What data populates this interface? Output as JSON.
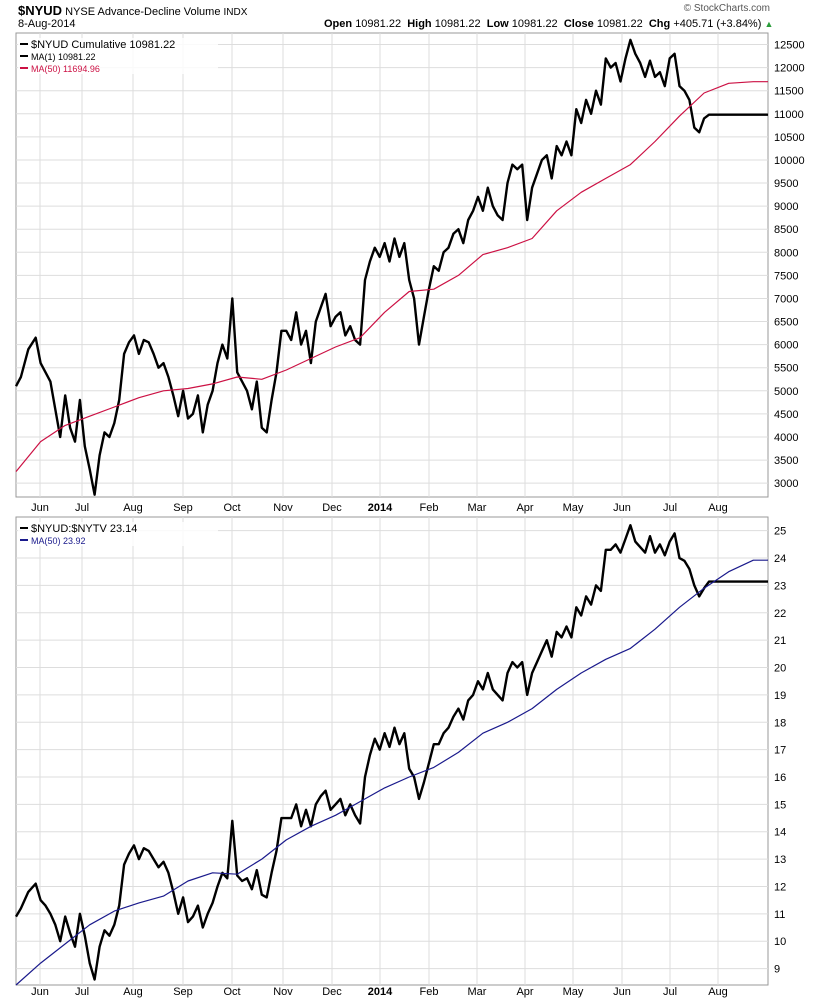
{
  "header": {
    "symbol": "$NYUD",
    "name": "NYSE Advance-Decline Volume",
    "exchange": "INDX",
    "date": "8-Aug-2014",
    "open_label": "Open",
    "open": "10981.22",
    "high_label": "High",
    "high": "10981.22",
    "low_label": "Low",
    "low": "10981.22",
    "close_label": "Close",
    "close": "10981.22",
    "chg_label": "Chg",
    "chg": "+405.71 (+3.84%)",
    "brand": "© StockCharts.com"
  },
  "colors": {
    "price": "#000000",
    "ma_top": "#cc1144",
    "ma_bottom": "#1a1a8c",
    "grid": "#dddddd",
    "frame": "#999999"
  },
  "chart_data": [
    {
      "type": "line",
      "x_ticks": [
        "Jun",
        "Jul",
        "Aug",
        "Sep",
        "Oct",
        "Nov",
        "Dec",
        "2014",
        "Feb",
        "Mar",
        "Apr",
        "May",
        "Jun",
        "Jul",
        "Aug"
      ],
      "ylim": [
        2700,
        12750
      ],
      "y_ticks": [
        3000,
        3500,
        4000,
        4500,
        5000,
        5500,
        6000,
        6500,
        7000,
        7500,
        8000,
        8500,
        9000,
        9500,
        10000,
        10500,
        11000,
        11500,
        12000,
        12500
      ],
      "legend": [
        {
          "label": "$NYUD Cumulative 10981.22",
          "color": "#000000"
        },
        {
          "label": "MA(1) 10981.22",
          "color": "#000000"
        },
        {
          "label": "MA(50) 11694.96",
          "color": "#cc1144"
        }
      ],
      "series": [
        {
          "name": "$NYUD Cumulative",
          "x": [
            0,
            2,
            5,
            8,
            10,
            12,
            14,
            16,
            18,
            20,
            22,
            24,
            26,
            28,
            30,
            32,
            34,
            36,
            38,
            40,
            42,
            44,
            46,
            48,
            50,
            52,
            54,
            56,
            58,
            60,
            62,
            64,
            66,
            68,
            70,
            72,
            74,
            76,
            78,
            80,
            82,
            84,
            86,
            88,
            90,
            92,
            94,
            96,
            98,
            100,
            102,
            104,
            106,
            108,
            110,
            112,
            114,
            116,
            118,
            120,
            122,
            124,
            126,
            128,
            130,
            132,
            134,
            136,
            138,
            140,
            142,
            144,
            146,
            148,
            150,
            152,
            154,
            156,
            158,
            160,
            162,
            164,
            166,
            168,
            170,
            172,
            174,
            176,
            178,
            180,
            182,
            184,
            186,
            188,
            190,
            192,
            194,
            196,
            198,
            200,
            202,
            204,
            206,
            208,
            210,
            212,
            214,
            216,
            218,
            220,
            222,
            224,
            226,
            228,
            230,
            232,
            234,
            236,
            238,
            240,
            242,
            244,
            246,
            248,
            250,
            252,
            254,
            256,
            258,
            260,
            262,
            264,
            266,
            268,
            270,
            272,
            274,
            276,
            278,
            280,
            282,
            284,
            286,
            288,
            290,
            292,
            294,
            296,
            298,
            300,
            302,
            304,
            306
          ],
          "values": [
            5100,
            5300,
            5900,
            6150,
            5600,
            5400,
            5200,
            4600,
            4000,
            4900,
            4200,
            3900,
            4800,
            3800,
            3300,
            2750,
            3600,
            4100,
            4000,
            4300,
            4800,
            5800,
            6050,
            6200,
            5800,
            6100,
            6050,
            5800,
            5500,
            5600,
            5300,
            4900,
            4450,
            5000,
            4400,
            4500,
            4900,
            4100,
            4700,
            5000,
            5600,
            6000,
            5700,
            7000,
            5400,
            5200,
            5000,
            4600,
            5200,
            4200,
            4100,
            4800,
            5400,
            6300,
            6300,
            6100,
            6700,
            6000,
            6300,
            5600,
            6500,
            6800,
            7100,
            6400,
            6600,
            6700,
            6200,
            6400,
            6100,
            6000,
            7400,
            7800,
            8100,
            7900,
            8200,
            7800,
            8300,
            7900,
            8200,
            7400,
            7000,
            6000,
            6600,
            7200,
            7700,
            7600,
            8000,
            8100,
            8400,
            8500,
            8200,
            8700,
            8900,
            9200,
            8900,
            9400,
            9000,
            8800,
            8700,
            9500,
            9900,
            9800,
            9900,
            8700,
            9400,
            9700,
            10000,
            10100,
            9600,
            10300,
            10100,
            10400,
            10100,
            11100,
            10800,
            11300,
            11000,
            11500,
            11200,
            12200,
            12000,
            12100,
            11700,
            12200,
            12600,
            12300,
            12100,
            11800,
            12150,
            11800,
            11900,
            11600,
            12200,
            12300,
            11600,
            11500,
            11300,
            10700,
            10600,
            10900,
            10981,
            10981,
            10981,
            10981,
            10981,
            10981,
            10981,
            10981,
            10981,
            10981,
            10981,
            10981,
            10981
          ]
        },
        {
          "name": "MA(50)",
          "x": [
            0,
            10,
            20,
            30,
            40,
            50,
            60,
            70,
            80,
            90,
            100,
            110,
            120,
            130,
            140,
            150,
            160,
            170,
            180,
            190,
            200,
            210,
            220,
            230,
            240,
            250,
            260,
            270,
            280,
            290,
            300,
            306
          ],
          "values": [
            3250,
            3900,
            4250,
            4450,
            4650,
            4850,
            5000,
            5050,
            5150,
            5300,
            5250,
            5450,
            5700,
            5950,
            6150,
            6700,
            7150,
            7200,
            7500,
            7950,
            8100,
            8300,
            8900,
            9300,
            9600,
            9900,
            10400,
            10950,
            11450,
            11660,
            11695,
            11695
          ]
        }
      ]
    },
    {
      "type": "line",
      "x_ticks": [
        "Jun",
        "Jul",
        "Aug",
        "Sep",
        "Oct",
        "Nov",
        "Dec",
        "2014",
        "Feb",
        "Mar",
        "Apr",
        "May",
        "Jun",
        "Jul",
        "Aug"
      ],
      "ylim": [
        8.4,
        25.5
      ],
      "y_ticks": [
        9,
        10,
        11,
        12,
        13,
        14,
        15,
        16,
        17,
        18,
        19,
        20,
        21,
        22,
        23,
        24,
        25
      ],
      "legend": [
        {
          "label": "$NYUD:$NYTV 23.14",
          "color": "#000000"
        },
        {
          "label": "MA(50) 23.92",
          "color": "#1a1a8c"
        }
      ],
      "series": [
        {
          "name": "$NYUD:$NYTV",
          "x": [
            0,
            2,
            5,
            8,
            10,
            12,
            14,
            16,
            18,
            20,
            22,
            24,
            26,
            28,
            30,
            32,
            34,
            36,
            38,
            40,
            42,
            44,
            46,
            48,
            50,
            52,
            54,
            56,
            58,
            60,
            62,
            64,
            66,
            68,
            70,
            72,
            74,
            76,
            78,
            80,
            82,
            84,
            86,
            88,
            90,
            92,
            94,
            96,
            98,
            100,
            102,
            104,
            106,
            108,
            110,
            112,
            114,
            116,
            118,
            120,
            122,
            124,
            126,
            128,
            130,
            132,
            134,
            136,
            138,
            140,
            142,
            144,
            146,
            148,
            150,
            152,
            154,
            156,
            158,
            160,
            162,
            164,
            166,
            168,
            170,
            172,
            174,
            176,
            178,
            180,
            182,
            184,
            186,
            188,
            190,
            192,
            194,
            196,
            198,
            200,
            202,
            204,
            206,
            208,
            210,
            212,
            214,
            216,
            218,
            220,
            222,
            224,
            226,
            228,
            230,
            232,
            234,
            236,
            238,
            240,
            242,
            244,
            246,
            248,
            250,
            252,
            254,
            256,
            258,
            260,
            262,
            264,
            266,
            268,
            270,
            272,
            274,
            276,
            278,
            280,
            282,
            284,
            286,
            288,
            290,
            292,
            294,
            296,
            298,
            300,
            302,
            304,
            306
          ],
          "values": [
            10.9,
            11.2,
            11.8,
            12.1,
            11.5,
            11.3,
            11.0,
            10.6,
            10.0,
            10.9,
            10.3,
            9.8,
            11.0,
            10.2,
            9.2,
            8.6,
            9.8,
            10.4,
            10.2,
            10.6,
            11.3,
            12.8,
            13.2,
            13.5,
            13.0,
            13.4,
            13.3,
            13.0,
            12.7,
            12.9,
            12.5,
            11.8,
            11.0,
            11.6,
            10.7,
            10.9,
            11.3,
            10.5,
            11.0,
            11.4,
            12.0,
            12.5,
            12.3,
            14.4,
            12.4,
            12.2,
            12.3,
            11.9,
            12.6,
            11.7,
            11.6,
            12.5,
            13.3,
            14.5,
            14.5,
            14.5,
            15.0,
            14.2,
            14.8,
            14.2,
            15.0,
            15.3,
            15.5,
            14.8,
            15.0,
            15.2,
            14.6,
            15.0,
            14.6,
            14.3,
            16.0,
            16.8,
            17.4,
            17.0,
            17.6,
            17.1,
            17.8,
            17.2,
            17.6,
            16.3,
            16.0,
            15.2,
            15.8,
            16.5,
            17.2,
            17.2,
            17.6,
            17.8,
            18.2,
            18.5,
            18.1,
            18.8,
            19.0,
            19.5,
            19.2,
            19.8,
            19.2,
            19.0,
            18.8,
            19.8,
            20.2,
            20.0,
            20.2,
            19.0,
            19.8,
            20.2,
            20.6,
            21.0,
            20.4,
            21.3,
            21.1,
            21.5,
            21.1,
            22.2,
            21.9,
            22.6,
            22.3,
            23.0,
            22.8,
            24.3,
            24.3,
            24.5,
            24.2,
            24.7,
            25.2,
            24.6,
            24.4,
            24.2,
            24.8,
            24.2,
            24.5,
            24.1,
            24.6,
            24.9,
            24.0,
            23.9,
            23.6,
            23.0,
            22.6,
            22.9,
            23.14,
            23.14,
            23.14,
            23.14,
            23.14,
            23.14,
            23.14,
            23.14,
            23.14,
            23.14,
            23.14,
            23.14,
            23.14
          ]
        },
        {
          "name": "MA(50)",
          "x": [
            0,
            10,
            20,
            30,
            40,
            50,
            60,
            70,
            80,
            90,
            100,
            110,
            120,
            130,
            140,
            150,
            160,
            170,
            180,
            190,
            200,
            210,
            220,
            230,
            240,
            250,
            260,
            270,
            280,
            290,
            300,
            306
          ],
          "values": [
            8.4,
            9.2,
            9.9,
            10.6,
            11.1,
            11.4,
            11.65,
            12.2,
            12.5,
            12.45,
            13.0,
            13.7,
            14.2,
            14.6,
            15.1,
            15.6,
            16.0,
            16.35,
            16.9,
            17.6,
            18.0,
            18.5,
            19.2,
            19.8,
            20.3,
            20.7,
            21.4,
            22.2,
            22.9,
            23.5,
            23.92,
            23.92
          ]
        }
      ]
    }
  ]
}
